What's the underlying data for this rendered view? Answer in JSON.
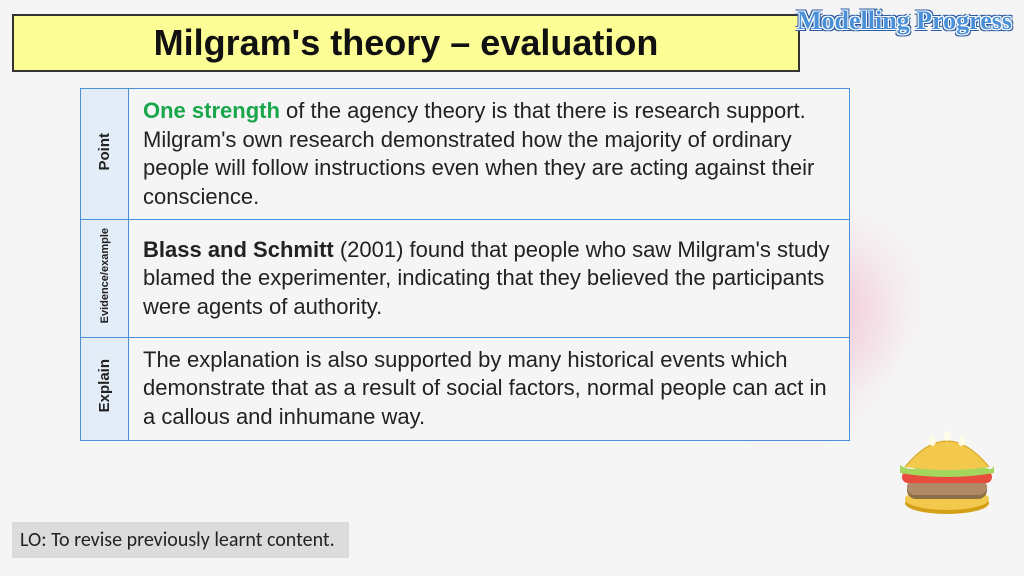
{
  "watermark": "Modelling Progress",
  "title": "Milgram's theory – evaluation",
  "table": {
    "border_color": "#4a90d9",
    "label_bg": "#e3edf7",
    "rows": [
      {
        "label": "Point",
        "label_size": "normal",
        "lead": "One strength ",
        "lead_style": "strength",
        "body": "of the agency theory is that there is research support. Milgram's own research demonstrated how the majority of ordinary people will follow instructions even when they are acting against their conscience."
      },
      {
        "label": "Evidence/example",
        "label_size": "small",
        "lead": "Blass and Schmitt ",
        "lead_style": "bold",
        "body": "(2001) found that people who saw Milgram's study blamed the experimenter, indicating that they believed the participants were agents of authority."
      },
      {
        "label": "Explain",
        "label_size": "normal",
        "lead": "",
        "lead_style": "none",
        "body": "The explanation is also supported by many historical events which demonstrate that as a result of social factors, normal people can act in a callous and inhumane way."
      }
    ]
  },
  "lo": "LO: To revise previously learnt content.",
  "colors": {
    "title_bg": "#fdfd96",
    "title_border": "#333333",
    "strength_green": "#1aa64a",
    "watermark_fill": "#4a90d9",
    "watermark_outline": "#2c5aa0",
    "lo_bg": "#dcdcdc",
    "page_bg": "#f5f5f5"
  },
  "burger": {
    "bun_color": "#f2c94c",
    "bun_shadow": "#d4a017",
    "lettuce": "#a4d65e",
    "tomato": "#e74c3c",
    "patty": "#b08968",
    "patty_shadow": "#8b6f47",
    "seed": "#fffde7"
  }
}
